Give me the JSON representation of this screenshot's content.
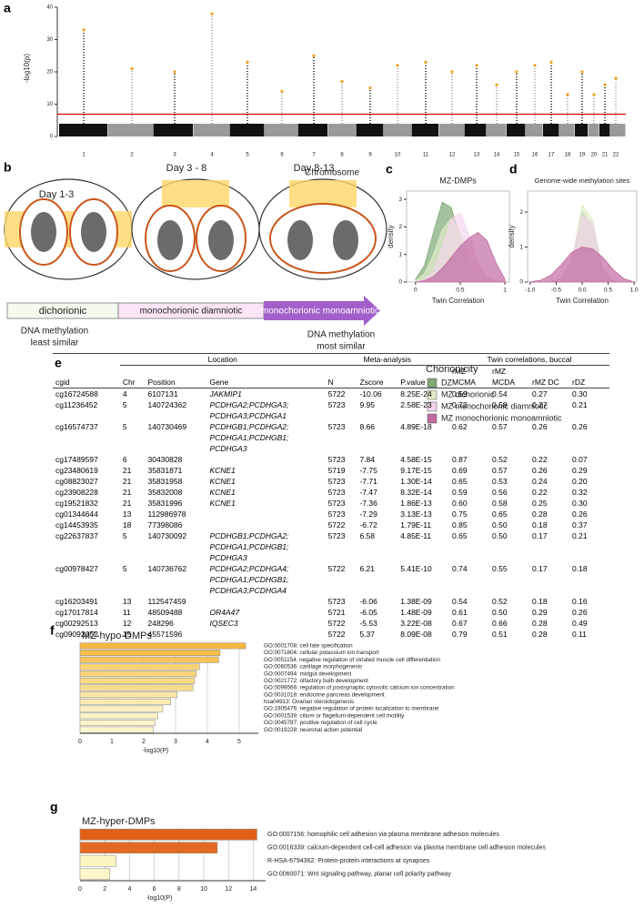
{
  "panel_labels": [
    "a",
    "b",
    "c",
    "d",
    "e",
    "f",
    "g"
  ],
  "diagram": {
    "days": [
      "Day 1-3",
      "Day 3 - 8",
      "Day 8-13"
    ],
    "stages": [
      "dichorionic",
      "monochorionic diamniotic",
      "monochorionic monoamniotic"
    ],
    "left_note": [
      "DNA methylation",
      "least similar"
    ],
    "right_note": [
      "DNA methylation",
      "most similar"
    ]
  },
  "chart_data": [
    {
      "type": "manhattan",
      "ylabel": "-log10(p)",
      "xlabel": "Chromosome",
      "categories": [
        "1",
        "2",
        "3",
        "4",
        "5",
        "6",
        "7",
        "8",
        "9",
        "10",
        "11",
        "12",
        "13",
        "14",
        "15",
        "16",
        "17",
        "18",
        "19",
        "20",
        "21",
        "22"
      ],
      "values": [
        33,
        21,
        20,
        38,
        23,
        14,
        25,
        17,
        15,
        22,
        23,
        20,
        22,
        16,
        20,
        22,
        23,
        13,
        20,
        13,
        16,
        18
      ],
      "ylim": [
        0,
        40
      ],
      "yticks": [
        0,
        10,
        20,
        30,
        40
      ],
      "threshold": 6.9,
      "threshold_color": "#e00000",
      "point_color": "#f0a020",
      "colors": [
        "#111111",
        "#9a9a9a"
      ]
    },
    {
      "type": "density",
      "title": "MZ-DMPs",
      "xlabel": "Twin Correlation",
      "ylabel": "density",
      "legend_title": "Chorionicity",
      "x": [
        0,
        0.1,
        0.2,
        0.3,
        0.4,
        0.5,
        0.6,
        0.7,
        0.8,
        0.9,
        1.0
      ],
      "series": [
        {
          "name": "DZ",
          "color": "#7fa876",
          "values": [
            0.1,
            0.6,
            1.8,
            2.9,
            2.7,
            1.6,
            0.6,
            0.2,
            0.05,
            0,
            0
          ]
        },
        {
          "name": "MZ dichorionic",
          "color": "#e0ecc8",
          "values": [
            0.05,
            0.3,
            1.0,
            1.9,
            2.3,
            1.8,
            1.0,
            0.5,
            0.2,
            0.05,
            0
          ]
        },
        {
          "name": "MZ monochorionic diamniotic",
          "color": "#f2d5ea",
          "values": [
            0,
            0.1,
            0.4,
            1.3,
            2.3,
            2.5,
            1.7,
            0.7,
            0.2,
            0.05,
            0
          ]
        },
        {
          "name": "MZ monochorionic monoamniotic",
          "color": "#c06aa0",
          "values": [
            0,
            0.05,
            0.2,
            0.5,
            0.9,
            1.3,
            1.6,
            1.8,
            1.5,
            0.7,
            0.1
          ]
        }
      ],
      "xlim": [
        -0.1,
        1.05
      ],
      "xticks": [
        0,
        0.5,
        1
      ],
      "ylim": [
        0,
        3.3
      ],
      "yticks": [
        0,
        1,
        2,
        3
      ]
    },
    {
      "type": "density",
      "title": "Genome-wide methylation sites",
      "xlabel": "Twin Correlation",
      "ylabel": "density",
      "x": [
        -1,
        -0.8,
        -0.6,
        -0.4,
        -0.2,
        0,
        0.2,
        0.4,
        0.6,
        0.8,
        1
      ],
      "series": [
        {
          "name": "DZ",
          "color": "#7fa876",
          "values": [
            0,
            0,
            0,
            0.02,
            0.5,
            2.0,
            1.6,
            0.2,
            0,
            0,
            0
          ]
        },
        {
          "name": "MZ dichorionic",
          "color": "#e0ecc8",
          "values": [
            0,
            0,
            0,
            0.05,
            0.6,
            2.2,
            1.8,
            0.3,
            0.02,
            0,
            0
          ]
        },
        {
          "name": "MZ monochorionic diamniotic",
          "color": "#f2d5ea",
          "values": [
            0,
            0,
            0.02,
            0.1,
            0.7,
            1.9,
            1.7,
            0.4,
            0.05,
            0,
            0
          ]
        },
        {
          "name": "MZ monochorionic monoamniotic",
          "color": "#c06aa0",
          "values": [
            0,
            0.05,
            0.2,
            0.5,
            0.85,
            1.0,
            0.95,
            0.7,
            0.35,
            0.1,
            0
          ]
        }
      ],
      "xlim": [
        -1.05,
        1.05
      ],
      "xticks": [
        {
          "value": -1,
          "label": "-1.0"
        },
        {
          "value": -0.5,
          "label": "-0.5"
        },
        {
          "value": 0,
          "label": "0.0"
        },
        {
          "value": 0.5,
          "label": "0.5"
        },
        {
          "value": 1,
          "label": "1.0"
        }
      ],
      "ylim": [
        0,
        2.6
      ],
      "yticks": [
        0,
        1,
        2
      ]
    },
    {
      "type": "barh",
      "title": "MZ-hypo-DMPs",
      "xlabel": "-log10(P)",
      "categories": [
        "GO:0001708: cell fate specification",
        "GO:0071804: cellular potassium ion transport",
        "GO:0051154: negative regulation of striated muscle cell differentiation",
        "GO:0060536: cartilage morphogenesis",
        "GO:0007494: midgut development",
        "GO:0021772: olfactory bulb development",
        "GO:0099566: regulation of postsynaptic cytosolic calcium ion concentration",
        "GO:0031018: endocrine pancreas development",
        "hsa04913: Ovarian steroidogenesis",
        "GO:1905476: negative regulation of protein localization to membrane",
        "GO:0001539: cilium or flagellum-dependent cell motility",
        "GO:0045787: positive regulation of cell cycle",
        "GO:0019228: neuronal action potential"
      ],
      "values": [
        5.2,
        4.4,
        4.35,
        3.75,
        3.65,
        3.6,
        3.55,
        3.05,
        2.85,
        2.6,
        2.45,
        2.35,
        2.3
      ],
      "colors": [
        "#f5b942",
        "#f6bf4e",
        "#f6c45a",
        "#f8d274",
        "#f8d67c",
        "#f9da86",
        "#f9dd8e",
        "#fbe7a8",
        "#fbebb2",
        "#fcf0c0",
        "#fcf2c6",
        "#fdf4cc",
        "#fdf5d0"
      ],
      "xlim": [
        0,
        5.6
      ],
      "xticks": [
        0,
        1,
        2,
        3,
        4,
        5
      ]
    },
    {
      "type": "barh",
      "title": "MZ-hyper-DMPs",
      "xlabel": "-log10(P)",
      "categories": [
        "GO:0007156: homophilic cell adhesion via plasma membrane adhesion molecules",
        "GO:0016339: calcium-dependent cell-cell adhesion via plasma membrane cell adhesion molecules",
        "R-HSA-6794362: Protein-protein interactions at synapses",
        "GO:0060071: Wnt signaling pathway, planar cell polarity pathway"
      ],
      "values": [
        14.3,
        11.1,
        2.9,
        2.4
      ],
      "colors": [
        "#e0601a",
        "#e26a24",
        "#fdf5c0",
        "#fdf6c8"
      ],
      "xlim": [
        0,
        15
      ],
      "xticks": [
        0,
        2,
        4,
        6,
        8,
        10,
        12,
        14
      ]
    }
  ],
  "table": {
    "groups": [
      "Location",
      "Meta-analysis",
      "Twin correlations, buccal"
    ],
    "columns": [
      "cgid",
      "Chr",
      "Position",
      "Gene",
      "N",
      "Zscore",
      "P.value",
      "rMZ MCMA",
      "rMZ MCDA",
      "rMZ DC",
      "rDZ"
    ],
    "rows": [
      [
        "cg16724588",
        "4",
        "6107131",
        [
          "JAKMIP1"
        ],
        "5722",
        "-10.06",
        "8.25E-24",
        "0.59",
        "0.54",
        "0.27",
        "0.30"
      ],
      [
        "cg11236452",
        "5",
        "140724362",
        [
          "PCDHGA2;PCDHGA3;",
          "PCDHGA3;PCDHGA1"
        ],
        "5723",
        "9.95",
        "2.58E-23",
        "0.72",
        "0.58",
        "0.27",
        "0.21"
      ],
      [
        "cg16574737",
        "5",
        "140730469",
        [
          "PCDHGB1;PCDHGA2;",
          "PCDHGA1;PCDHGB1;",
          "PCDHGA3"
        ],
        "5723",
        "8.66",
        "4.89E-18",
        "0.62",
        "0.57",
        "0.26",
        "0.26"
      ],
      [
        "cg17489597",
        "6",
        "30430828",
        [],
        "5723",
        "7.84",
        "4.58E-15",
        "0.87",
        "0.52",
        "0.22",
        "0.07"
      ],
      [
        "cg23480619",
        "21",
        "35831871",
        [
          "KCNE1"
        ],
        "5719",
        "-7.75",
        "9.17E-15",
        "0.69",
        "0.57",
        "0.26",
        "0.29"
      ],
      [
        "cg08823027",
        "21",
        "35831958",
        [
          "KCNE1"
        ],
        "5723",
        "-7.71",
        "1.30E-14",
        "0.65",
        "0.53",
        "0.24",
        "0.20"
      ],
      [
        "cg23908228",
        "21",
        "35832008",
        [
          "KCNE1"
        ],
        "5723",
        "-7.47",
        "8.32E-14",
        "0.59",
        "0.56",
        "0.22",
        "0.32"
      ],
      [
        "cg19521832",
        "21",
        "35831996",
        [
          "KCNE1"
        ],
        "5723",
        "-7.36",
        "1.86E-13",
        "0.60",
        "0.58",
        "0.25",
        "0.30"
      ],
      [
        "cg01344644",
        "13",
        "112986978",
        [],
        "5723",
        "-7.29",
        "3.13E-13",
        "0.75",
        "0.65",
        "0.28",
        "0.26"
      ],
      [
        "cg14453935",
        "18",
        "77398086",
        [],
        "5722",
        "-6.72",
        "1.79E-11",
        "0.85",
        "0.50",
        "0.18",
        "0.37"
      ],
      [
        "cg22637837",
        "5",
        "140730092",
        [
          "PCDHGB1;PCDHGA2;",
          "PCDHGA1;PCDHGB1;",
          "PCDHGA3"
        ],
        "5723",
        "6.58",
        "4.85E-11",
        "0.65",
        "0.50",
        "0.17",
        "0.21"
      ],
      [
        "cg00978427",
        "5",
        "140736762",
        [
          "PCDHGA2;PCDHGA4;",
          "PCDHGA1;PCDHGB1;",
          "PCDHGA3;PCDHGA4"
        ],
        "5722",
        "6.21",
        "5.41E-10",
        "0.74",
        "0.55",
        "0.17",
        "0.18"
      ],
      [
        "cg16203491",
        "13",
        "112547459",
        [],
        "5723",
        "-6.06",
        "1.38E-09",
        "0.54",
        "0.52",
        "0.18",
        "0.16"
      ],
      [
        "cg17017814",
        "11",
        "48509488",
        [
          "OR4A47"
        ],
        "5721",
        "-6.05",
        "1.48E-09",
        "0.61",
        "0.50",
        "0.29",
        "0.26"
      ],
      [
        "cg00292513",
        "12",
        "248296",
        [
          "IQSEC3"
        ],
        "5722",
        "-5.53",
        "3.22E-08",
        "0.67",
        "0.66",
        "0.28",
        "0.49"
      ],
      [
        "cg09092052",
        "15",
        "45571596",
        [],
        "5722",
        "5.37",
        "8.09E-08",
        "0.79",
        "0.51",
        "0.28",
        "0.11"
      ]
    ]
  }
}
